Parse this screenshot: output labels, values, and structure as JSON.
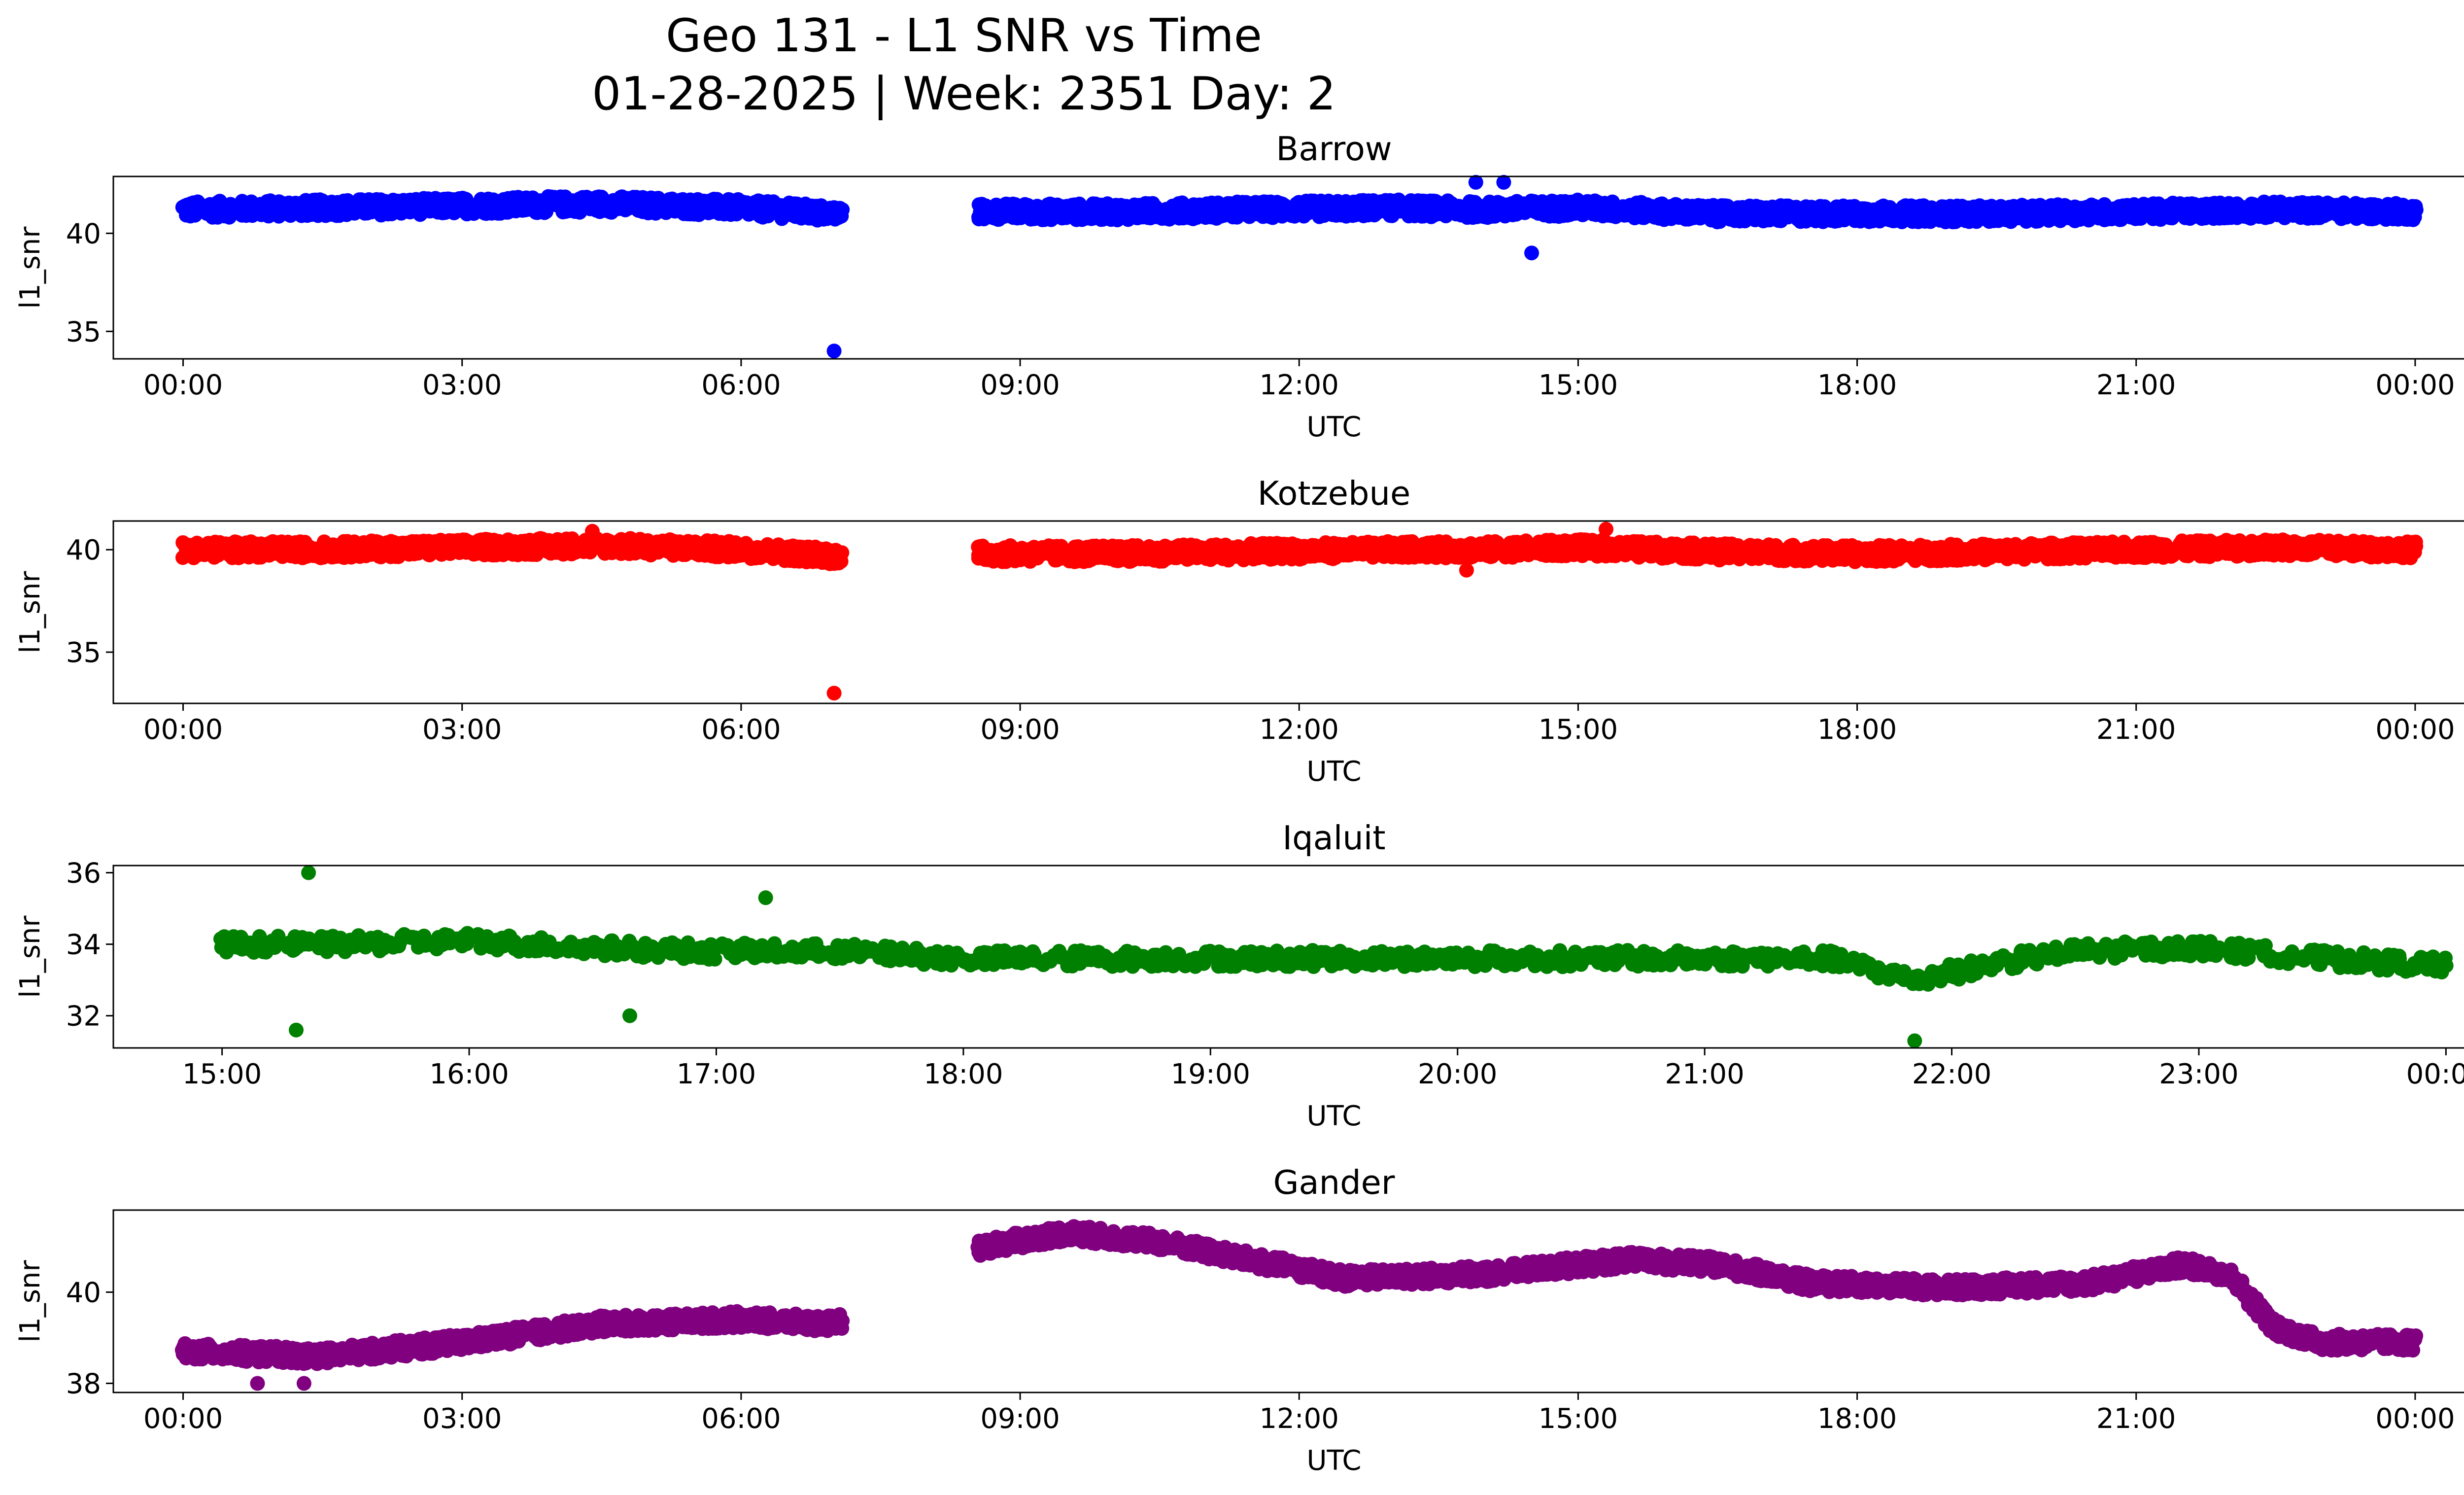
{
  "figure": {
    "title_line1": "Geo 131 - L1 SNR vs Time",
    "title_line2": "01-28-2025 | Week: 2351 Day: 2"
  },
  "chart_data": [
    {
      "type": "scatter",
      "title": "Barrow",
      "xlabel": "UTC",
      "ylabel": "l1_snr",
      "color": "#0000ff",
      "x_range_hours": [
        -0.75,
        25.5
      ],
      "xticks": [
        "00:00",
        "03:00",
        "06:00",
        "09:00",
        "12:00",
        "15:00",
        "18:00",
        "21:00",
        "00:00"
      ],
      "xtick_hours": [
        0,
        3,
        6,
        9,
        12,
        15,
        18,
        21,
        24
      ],
      "ylim": [
        33.6,
        42.9
      ],
      "yticks": [
        35,
        40
      ],
      "gaps_hours": [
        [
          7.1,
          8.55
        ]
      ],
      "series": [
        {
          "name": "Barrow l1_snr",
          "t": [
            0.0,
            1.5,
            3.0,
            4.5,
            6.0,
            7.0,
            8.6,
            10.0,
            11.5,
            13.0,
            14.0,
            15.0,
            16.5,
            18.0,
            19.5,
            21.0,
            22.5,
            24.0
          ],
          "values": [
            41.2,
            41.3,
            41.4,
            41.5,
            41.3,
            41.0,
            41.1,
            41.1,
            41.2,
            41.3,
            41.2,
            41.3,
            41.0,
            41.0,
            41.0,
            41.1,
            41.2,
            41.1
          ]
        }
      ],
      "outliers": [
        [
          7.0,
          34.0
        ],
        [
          14.5,
          39.0
        ],
        [
          13.9,
          42.6
        ],
        [
          14.2,
          42.6
        ]
      ]
    },
    {
      "type": "scatter",
      "title": "Kotzebue",
      "xlabel": "UTC",
      "ylabel": "l1_snr",
      "color": "#ff0000",
      "x_range_hours": [
        -0.75,
        25.5
      ],
      "xticks": [
        "00:00",
        "03:00",
        "06:00",
        "09:00",
        "12:00",
        "15:00",
        "18:00",
        "21:00",
        "00:00"
      ],
      "xtick_hours": [
        0,
        3,
        6,
        9,
        12,
        15,
        18,
        21,
        24
      ],
      "ylim": [
        32.5,
        41.4
      ],
      "yticks": [
        35,
        40
      ],
      "gaps_hours": [
        [
          7.1,
          8.55
        ]
      ],
      "series": [
        {
          "name": "Kotzebue l1_snr",
          "t": [
            0.0,
            1.5,
            3.0,
            4.5,
            6.0,
            7.0,
            8.6,
            10.0,
            11.5,
            13.0,
            14.0,
            15.0,
            16.5,
            18.0,
            19.5,
            21.0,
            22.5,
            24.0
          ],
          "values": [
            40.0,
            40.0,
            40.1,
            40.2,
            40.0,
            39.7,
            39.8,
            39.8,
            39.9,
            40.0,
            40.0,
            40.1,
            39.9,
            39.8,
            39.9,
            40.0,
            40.1,
            40.0
          ]
        }
      ],
      "outliers": [
        [
          7.0,
          33.0
        ],
        [
          4.4,
          40.9
        ],
        [
          15.3,
          41.0
        ],
        [
          13.8,
          39.0
        ]
      ]
    },
    {
      "type": "scatter",
      "title": "Iqaluit",
      "xlabel": "UTC",
      "ylabel": "l1_snr",
      "color": "#008000",
      "x_range_hours": [
        14.56,
        24.44
      ],
      "xticks": [
        "15:00",
        "16:00",
        "17:00",
        "18:00",
        "19:00",
        "20:00",
        "21:00",
        "22:00",
        "23:00",
        "00:00"
      ],
      "xtick_hours": [
        15,
        16,
        17,
        18,
        19,
        20,
        21,
        22,
        23,
        24
      ],
      "ylim": [
        31.1,
        36.2
      ],
      "yticks": [
        32,
        34,
        36
      ],
      "gaps_hours": [],
      "series": [
        {
          "name": "Iqaluit l1_snr",
          "t": [
            15.0,
            15.5,
            16.0,
            16.5,
            17.0,
            17.5,
            18.0,
            19.0,
            20.0,
            21.0,
            21.5,
            21.85,
            22.2,
            22.5,
            23.0,
            23.5,
            24.0
          ],
          "values": [
            34.0,
            34.0,
            34.1,
            33.9,
            33.8,
            33.8,
            33.6,
            33.6,
            33.6,
            33.6,
            33.6,
            33.0,
            33.5,
            33.8,
            33.9,
            33.6,
            33.4
          ]
        }
      ],
      "outliers": [
        [
          15.35,
          36.0
        ],
        [
          15.3,
          31.6
        ],
        [
          16.65,
          32.0
        ],
        [
          21.85,
          31.3
        ],
        [
          17.2,
          35.3
        ]
      ]
    },
    {
      "type": "scatter",
      "title": "Gander",
      "xlabel": "UTC",
      "ylabel": "l1_snr",
      "color": "#800080",
      "x_range_hours": [
        -0.75,
        25.5
      ],
      "xticks": [
        "00:00",
        "03:00",
        "06:00",
        "09:00",
        "12:00",
        "15:00",
        "18:00",
        "21:00",
        "00:00"
      ],
      "xtick_hours": [
        0,
        3,
        6,
        9,
        12,
        15,
        18,
        21,
        24
      ],
      "ylim": [
        37.8,
        41.8
      ],
      "yticks": [
        38,
        40
      ],
      "gaps_hours": [
        [
          7.1,
          8.55
        ]
      ],
      "series": [
        {
          "name": "Gander l1_snr",
          "t": [
            0.0,
            1.5,
            3.0,
            4.5,
            6.0,
            7.0,
            8.6,
            9.5,
            10.5,
            11.5,
            12.5,
            14.0,
            15.5,
            16.5,
            17.5,
            19.0,
            20.5,
            21.5,
            22.0,
            22.5,
            23.0,
            24.0
          ],
          "values": [
            38.7,
            38.6,
            38.9,
            39.3,
            39.4,
            39.3,
            41.0,
            41.3,
            41.1,
            40.7,
            40.3,
            40.4,
            40.7,
            40.6,
            40.2,
            40.1,
            40.2,
            40.6,
            40.4,
            39.2,
            38.9,
            38.9
          ]
        }
      ],
      "outliers": [
        [
          0.8,
          38.0
        ],
        [
          1.3,
          38.0
        ]
      ]
    }
  ]
}
